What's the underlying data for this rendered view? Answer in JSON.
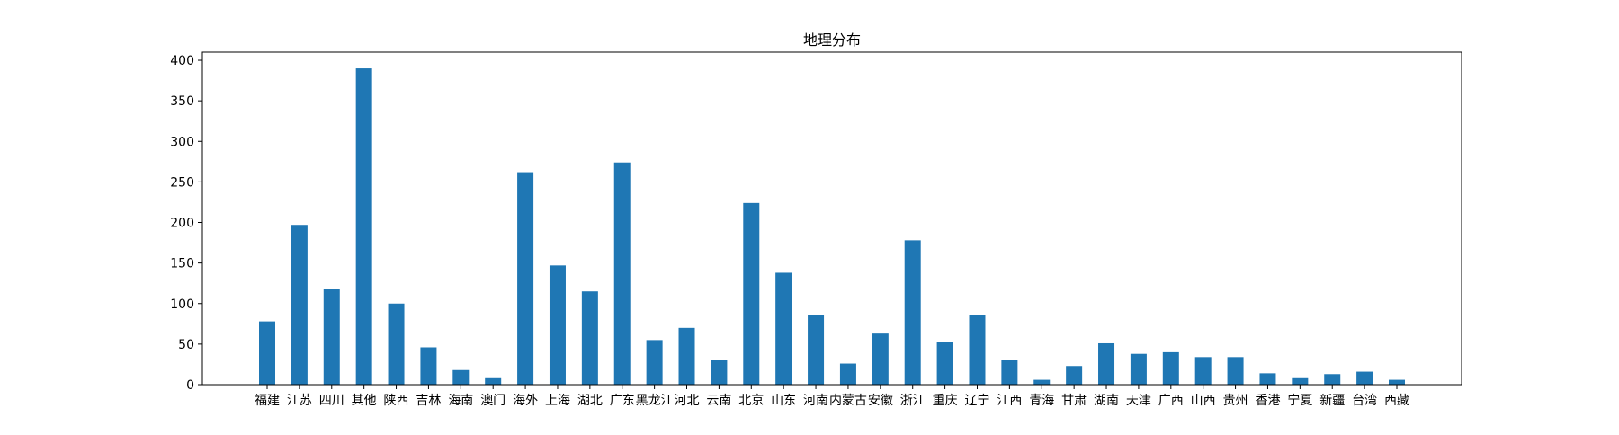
{
  "chart_data": {
    "type": "bar",
    "title": "地理分布",
    "xlabel": "",
    "ylabel": "",
    "ylim": [
      0,
      410
    ],
    "yticks": [
      0,
      50,
      100,
      150,
      200,
      250,
      300,
      350,
      400
    ],
    "grid": false,
    "bar_color": "#1f77b4",
    "categories": [
      "福建",
      "江苏",
      "四川",
      "其他",
      "陕西",
      "吉林",
      "海南",
      "澳门",
      "海外",
      "上海",
      "湖北",
      "广东",
      "黑龙江",
      "河北",
      "云南",
      "北京",
      "山东",
      "河南",
      "内蒙古",
      "安徽",
      "浙江",
      "重庆",
      "辽宁",
      "江西",
      "青海",
      "甘肃",
      "湖南",
      "天津",
      "广西",
      "山西",
      "贵州",
      "香港",
      "宁夏",
      "新疆",
      "台湾",
      "西藏"
    ],
    "values": [
      78,
      197,
      118,
      390,
      100,
      46,
      18,
      8,
      262,
      147,
      115,
      274,
      55,
      70,
      30,
      224,
      138,
      86,
      26,
      63,
      178,
      53,
      86,
      30,
      6,
      23,
      51,
      38,
      40,
      34,
      34,
      14,
      8,
      13,
      16,
      6
    ]
  }
}
